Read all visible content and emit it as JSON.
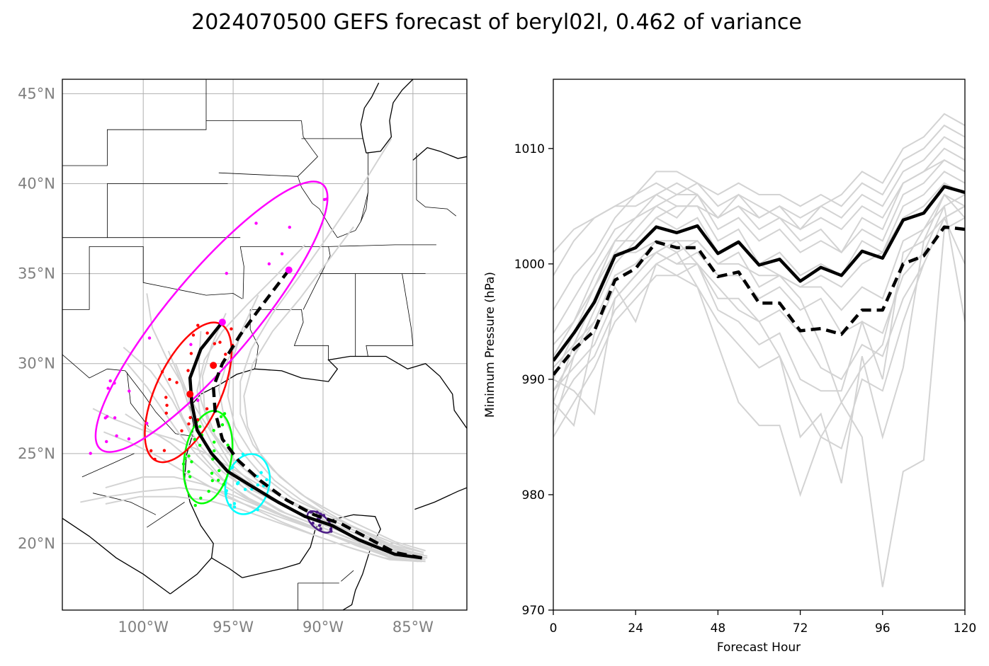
{
  "title": "2024070500 GEFS forecast of beryl02l, 0.462 of variance",
  "colors": {
    "ensemble": "#d3d3d3",
    "mean": "#000000",
    "grid": "#b0b0b0",
    "map_tick": "#808080"
  },
  "chart_data": [
    {
      "type": "scatter",
      "kind": "track-map",
      "xlim": [
        -104.5,
        -82
      ],
      "ylim": [
        16.3,
        45.8
      ],
      "grid": true,
      "x_ticks": [
        {
          "value": -100,
          "label": "100°W"
        },
        {
          "value": -95,
          "label": "95°W"
        },
        {
          "value": -90,
          "label": "90°W"
        },
        {
          "value": -85,
          "label": "85°W"
        }
      ],
      "y_ticks": [
        {
          "value": 20,
          "label": "20°N"
        },
        {
          "value": 25,
          "label": "25°N"
        },
        {
          "value": 30,
          "label": "30°N"
        },
        {
          "value": 35,
          "label": "35°N"
        },
        {
          "value": 40,
          "label": "40°N"
        },
        {
          "value": 45,
          "label": "45°N"
        }
      ],
      "mean_track_solid": [
        [
          -84.5,
          19.2
        ],
        [
          -86,
          19.4
        ],
        [
          -88,
          20.2
        ],
        [
          -89.5,
          21
        ],
        [
          -91,
          21.5
        ],
        [
          -92.5,
          22.3
        ],
        [
          -94,
          23.2
        ],
        [
          -95.3,
          24
        ],
        [
          -96.2,
          25
        ],
        [
          -97,
          26.3
        ],
        [
          -97.3,
          27.8
        ],
        [
          -97.4,
          29.2
        ],
        [
          -96.8,
          30.8
        ],
        [
          -95.6,
          32.3
        ]
      ],
      "mean_track_dashed": [
        [
          -84.5,
          19.2
        ],
        [
          -86,
          19.5
        ],
        [
          -87.5,
          20.3
        ],
        [
          -89,
          21.1
        ],
        [
          -90.5,
          21.6
        ],
        [
          -92,
          22.4
        ],
        [
          -93.5,
          23.5
        ],
        [
          -94.7,
          24.6
        ],
        [
          -95.6,
          25.8
        ],
        [
          -96,
          27.3
        ],
        [
          -96.1,
          28.7
        ],
        [
          -95.6,
          30
        ],
        [
          -94.6,
          31.6
        ],
        [
          -93.5,
          33.1
        ],
        [
          -91.9,
          35.2
        ]
      ],
      "ellipses": [
        {
          "color": "#4b1b86",
          "cx": -90.2,
          "cy": 21.2,
          "rx": 0.8,
          "ry": 0.4,
          "rot_deg": 40
        },
        {
          "color": "#00ffff",
          "cx": -94.2,
          "cy": 23.3,
          "rx": 1.2,
          "ry": 1.7,
          "rot_deg": 15
        },
        {
          "color": "#00ff00",
          "cx": -96.4,
          "cy": 24.8,
          "rx": 1.3,
          "ry": 2.6,
          "rot_deg": 10
        },
        {
          "color": "#ff0000",
          "cx": -97.5,
          "cy": 28.4,
          "rx": 1.8,
          "ry": 4.2,
          "rot_deg": 25
        },
        {
          "color": "#ff00ff",
          "cx": -96.2,
          "cy": 32.6,
          "rx": 2.4,
          "ry": 9.6,
          "rot_deg": 40
        }
      ],
      "mean_markers": [
        {
          "color": "#ff0000",
          "points": [
            [
              -97.4,
              28.3
            ],
            [
              -96.1,
              29.9
            ]
          ]
        },
        {
          "color": "#ff00ff",
          "points": [
            [
              -95.6,
              32.3
            ],
            [
              -91.9,
              35.2
            ]
          ]
        }
      ]
    },
    {
      "type": "line",
      "xlabel": "Forecast Hour",
      "ylabel": "Minimum Pressure (hPa)",
      "xlim": [
        0,
        120
      ],
      "ylim": [
        970,
        1016
      ],
      "x_ticks": [
        {
          "value": 0,
          "label": "0"
        },
        {
          "value": 24,
          "label": "24"
        },
        {
          "value": 48,
          "label": "48"
        },
        {
          "value": 72,
          "label": "72"
        },
        {
          "value": 96,
          "label": "96"
        },
        {
          "value": 120,
          "label": "120"
        }
      ],
      "y_ticks": [
        {
          "value": 970,
          "label": "970"
        },
        {
          "value": 980,
          "label": "980"
        },
        {
          "value": 990,
          "label": "990"
        },
        {
          "value": 1000,
          "label": "1000"
        },
        {
          "value": 1010,
          "label": "1010"
        }
      ],
      "x": [
        0,
        6,
        12,
        18,
        24,
        30,
        36,
        42,
        48,
        54,
        60,
        66,
        72,
        78,
        84,
        90,
        96,
        102,
        108,
        114,
        120
      ],
      "mean_solid": [
        991.6,
        994.0,
        996.7,
        1000.7,
        1001.4,
        1003.2,
        1002.7,
        1003.3,
        1000.9,
        1001.9,
        999.9,
        1000.4,
        998.5,
        999.7,
        999.0,
        1001.1,
        1000.5,
        1003.8,
        1004.4,
        1006.7,
        1006.2
      ],
      "mean_dashed": [
        990.4,
        992.6,
        994.2,
        998.6,
        999.6,
        1001.9,
        1001.4,
        1001.4,
        998.9,
        999.3,
        996.6,
        996.6,
        994.2,
        994.4,
        993.9,
        996.0,
        996.0,
        1000.0,
        1000.7,
        1003.2,
        1003.0
      ],
      "members": [
        [
          986.0,
          992.0,
          996.0,
          1000.0,
          1002.0,
          1004.0,
          1005.0,
          1005.0,
          1004.0,
          1005.0,
          1003.0,
          1004.0,
          1002.0,
          1003.0,
          1001.0,
          1003.0,
          1002.0,
          1006.0,
          1007.0,
          1009.0,
          1008.0
        ],
        [
          988.0,
          993.0,
          997.0,
          1001.0,
          1003.0,
          1005.0,
          1004.0,
          1006.0,
          1003.0,
          1004.0,
          1002.0,
          1003.0,
          1001.0,
          1002.0,
          1001.0,
          1004.0,
          1003.0,
          1007.0,
          1008.0,
          1010.0,
          1009.0
        ],
        [
          990.0,
          994.0,
          998.0,
          1002.0,
          1004.0,
          1006.0,
          1005.0,
          1005.0,
          1002.0,
          1003.0,
          1000.0,
          1001.0,
          999.0,
          1000.0,
          999.0,
          1002.0,
          1001.0,
          1005.0,
          1006.0,
          1008.0,
          1007.0
        ],
        [
          992.0,
          995.0,
          999.0,
          1002.0,
          1002.0,
          1004.0,
          1003.0,
          1004.0,
          1001.0,
          1002.0,
          1000.0,
          999.0,
          998.0,
          999.0,
          998.0,
          1000.0,
          1001.0,
          1004.0,
          1005.0,
          1007.0,
          1006.0
        ],
        [
          994.0,
          997.0,
          1000.0,
          1003.0,
          1004.0,
          1005.0,
          1006.0,
          1006.0,
          1004.0,
          1005.0,
          1004.0,
          1005.0,
          1003.0,
          1004.0,
          1003.0,
          1005.0,
          1004.0,
          1007.0,
          1008.0,
          1009.0,
          1008.0
        ],
        [
          996.0,
          999.0,
          1001.0,
          1004.0,
          1006.0,
          1007.0,
          1006.0,
          1007.0,
          1005.0,
          1006.0,
          1004.0,
          1005.0,
          1004.0,
          1005.0,
          1004.0,
          1006.0,
          1005.0,
          1008.0,
          1009.0,
          1011.0,
          1010.0
        ],
        [
          999.0,
          1002.0,
          1004.0,
          1005.0,
          1006.0,
          1008.0,
          1008.0,
          1007.0,
          1006.0,
          1007.0,
          1006.0,
          1006.0,
          1005.0,
          1006.0,
          1005.0,
          1007.0,
          1006.0,
          1009.0,
          1010.0,
          1012.0,
          1011.0
        ],
        [
          1001.0,
          1003.0,
          1004.0,
          1005.0,
          1005.0,
          1006.0,
          1007.0,
          1006.0,
          1004.0,
          1006.0,
          1005.0,
          1004.0,
          1003.0,
          1005.0,
          1006.0,
          1008.0,
          1007.0,
          1010.0,
          1011.0,
          1013.0,
          1012.0
        ],
        [
          989.0,
          991.0,
          993.0,
          997.0,
          999.0,
          1001.0,
          1000.0,
          1000.0,
          997.0,
          997.0,
          995.0,
          996.0,
          994.0,
          991.0,
          990.0,
          993.0,
          992.0,
          997.0,
          1000.0,
          1004.0,
          1005.0
        ],
        [
          987.0,
          990.0,
          992.0,
          996.0,
          998.0,
          1000.0,
          999.0,
          1000.0,
          996.0,
          995.0,
          993.0,
          994.0,
          990.0,
          989.0,
          989.0,
          995.0,
          994.0,
          999.0,
          1001.0,
          1005.0,
          1006.0
        ],
        [
          985.0,
          988.0,
          991.0,
          995.0,
          997.0,
          999.0,
          999.0,
          998.0,
          995.0,
          993.0,
          991.0,
          992.0,
          988.0,
          985.0,
          984.0,
          990.0,
          989.0,
          995.0,
          1000.0,
          1004.0,
          1005.0
        ],
        [
          988.0,
          986.0,
          994.0,
          998.0,
          995.0,
          1000.0,
          1001.0,
          998.0,
          993.0,
          988.0,
          986.0,
          986.0,
          980.0,
          985.0,
          988.0,
          985.0,
          972.0,
          982.0,
          983.0,
          1003.0,
          1004.0
        ],
        [
          990.0,
          989.0,
          987.0,
          997.0,
          999.0,
          1001.0,
          1002.0,
          1000.0,
          998.0,
          996.0,
          995.0,
          992.0,
          985.0,
          987.0,
          981.0,
          992.0,
          985.0,
          991.0,
          1002.0,
          1006.0,
          1004.0
        ],
        [
          991.0,
          993.0,
          995.0,
          999.0,
          1000.0,
          1001.0,
          1000.0,
          1001.0,
          999.0,
          999.0,
          997.0,
          998.0,
          996.0,
          997.0,
          994.0,
          995.0,
          990.0,
          1001.0,
          1002.0,
          1004.0,
          1000.0
        ],
        [
          993.0,
          995.0,
          998.0,
          1001.0,
          1001.0,
          1002.0,
          1002.0,
          1002.0,
          1000.0,
          1000.0,
          999.0,
          999.0,
          997.0,
          993.0,
          988.0,
          991.0,
          993.0,
          1000.0,
          1003.0,
          1005.0,
          995.0
        ],
        [
          989.0,
          992.0,
          995.0,
          999.0,
          1000.0,
          1002.0,
          1001.0,
          1002.0,
          1000.0,
          1001.0,
          998.0,
          999.0,
          998.0,
          998.0,
          996.0,
          998.0,
          997.0,
          1002.0,
          1003.0,
          1006.0,
          1005.0
        ]
      ]
    }
  ]
}
